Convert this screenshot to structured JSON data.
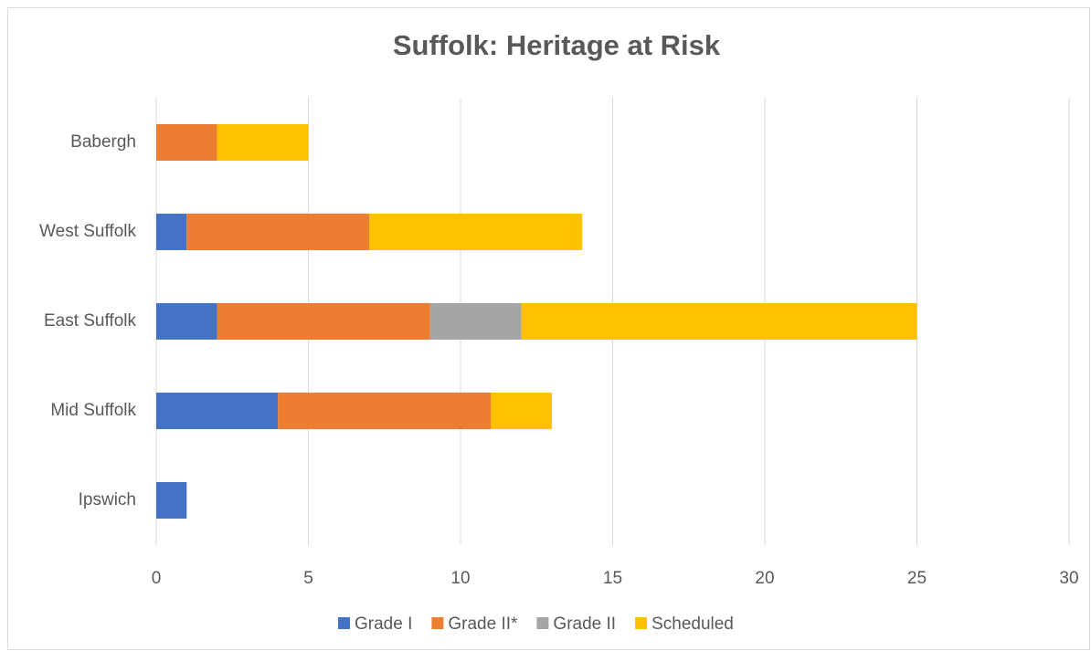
{
  "chart_data": {
    "type": "bar",
    "orientation": "horizontal",
    "stacked": true,
    "title": "Suffolk: Heritage at Risk",
    "categories": [
      "Babergh",
      "West Suffolk",
      "East Suffolk",
      "Mid Suffolk",
      "Ipswich"
    ],
    "series": [
      {
        "name": "Grade I",
        "color": "#4472c4",
        "values": [
          0,
          1,
          2,
          4,
          1
        ]
      },
      {
        "name": "Grade II*",
        "color": "#ed7d31",
        "values": [
          2,
          6,
          7,
          7,
          0
        ]
      },
      {
        "name": "Grade II",
        "color": "#a5a5a5",
        "values": [
          0,
          0,
          3,
          0,
          0
        ]
      },
      {
        "name": "Scheduled",
        "color": "#ffc000",
        "values": [
          3,
          7,
          13,
          2,
          0
        ]
      }
    ],
    "xlim": [
      0,
      30
    ],
    "xticks": [
      0,
      5,
      10,
      15,
      20,
      25,
      30
    ],
    "grid": true,
    "legend": "bottom"
  }
}
